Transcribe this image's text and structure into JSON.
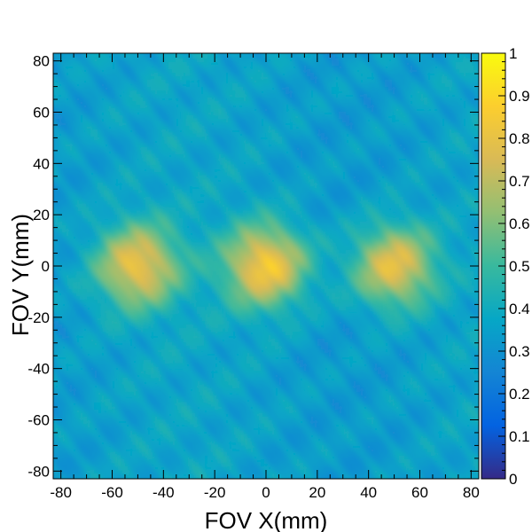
{
  "chart_data": {
    "type": "heatmap",
    "title": "",
    "xlabel": "FOV X(mm)",
    "ylabel": "FOV Y(mm)",
    "xlim": [
      -83,
      83
    ],
    "ylim": [
      -83,
      83
    ],
    "xticks": [
      -80,
      -60,
      -40,
      -20,
      0,
      20,
      40,
      60,
      80
    ],
    "yticks": [
      -80,
      -60,
      -40,
      -20,
      0,
      20,
      40,
      60,
      80
    ],
    "grid": false,
    "background_level": 0.35,
    "hot_spots": [
      {
        "x": -50,
        "y": 0,
        "peak": 0.8
      },
      {
        "x": 0,
        "y": 0,
        "peak": 0.85
      },
      {
        "x": 50,
        "y": 0,
        "peak": 0.8
      }
    ],
    "colorbar": {
      "range": [
        0,
        1
      ],
      "ticks": [
        0,
        0.1,
        0.2,
        0.3,
        0.4,
        0.5,
        0.6,
        0.7,
        0.8,
        0.9,
        1
      ],
      "tick_labels": [
        "0",
        "0.1",
        "0.2",
        "0.3",
        "0.4",
        "0.5",
        "0.6",
        "0.7",
        "0.8",
        "0.9",
        "1"
      ],
      "colormap": "parula",
      "colors": [
        "#352a87",
        "#0363e1",
        "#1485d4",
        "#06a7c6",
        "#38b99e",
        "#92bf73",
        "#d9ba56",
        "#fcce2e",
        "#f9fb0e"
      ]
    }
  }
}
